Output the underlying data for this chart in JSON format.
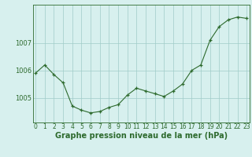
{
  "hours": [
    0,
    1,
    2,
    3,
    4,
    5,
    6,
    7,
    8,
    9,
    10,
    11,
    12,
    13,
    14,
    15,
    16,
    17,
    18,
    19,
    20,
    21,
    22,
    23
  ],
  "pressure": [
    1005.9,
    1006.2,
    1005.85,
    1005.55,
    1004.7,
    1004.55,
    1004.45,
    1004.5,
    1004.65,
    1004.75,
    1005.1,
    1005.35,
    1005.25,
    1005.15,
    1005.05,
    1005.25,
    1005.5,
    1006.0,
    1006.2,
    1007.1,
    1007.6,
    1007.85,
    1007.95,
    1007.9
  ],
  "line_color": "#2d6a2d",
  "marker_color": "#2d6a2d",
  "bg_color": "#d7f0ee",
  "grid_color": "#a0ccc8",
  "axis_color": "#2d6a2d",
  "ylabel_ticks": [
    1005,
    1006,
    1007
  ],
  "ylim": [
    1004.1,
    1008.4
  ],
  "xlabel": "Graphe pression niveau de la mer (hPa)",
  "xlabel_fontsize": 7.0,
  "tick_fontsize": 5.5,
  "ytick_fontsize": 6.0
}
